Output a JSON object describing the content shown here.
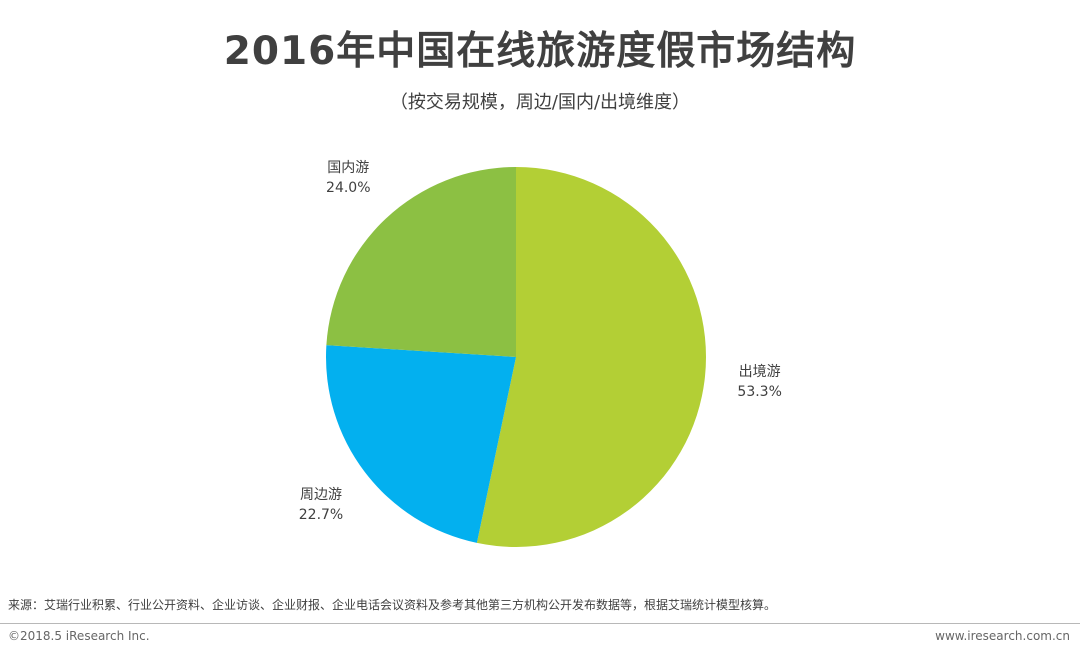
{
  "title": "2016年中国在线旅游度假市场结构",
  "subtitle": "（按交易规模，周边/国内/出境维度）",
  "chart_data": {
    "type": "pie",
    "title": "2016年中国在线旅游度假市场结构",
    "subtitle": "（按交易规模，周边/国内/出境维度）",
    "slices": [
      {
        "name": "出境游",
        "value": 53.3,
        "label": "53.3%",
        "color": "#b3cf35"
      },
      {
        "name": "周边游",
        "value": 22.7,
        "label": "22.7%",
        "color": "#03b0ef"
      },
      {
        "name": "国内游",
        "value": 24.0,
        "label": "24.0%",
        "color": "#8cc043"
      }
    ]
  },
  "footer": {
    "source": "来源：艾瑞行业积累、行业公开资料、企业访谈、企业财报、企业电话会议资料及参考其他第三方机构公开发布数据等，根据艾瑞统计模型核算。",
    "copyright": "©2018.5 iResearch Inc.",
    "website": "www.iresearch.com.cn"
  }
}
